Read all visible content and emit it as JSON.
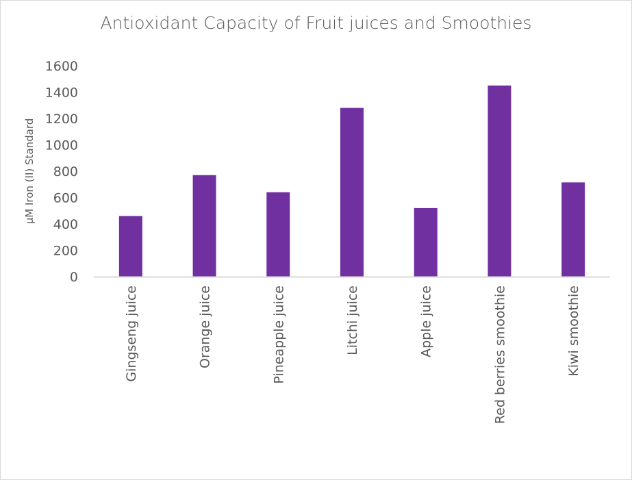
{
  "chart_data": {
    "type": "bar",
    "title": "Antioxidant Capacity of Fruit juices and Smoothies",
    "xlabel": "",
    "ylabel": "µM Iron (II) Standard",
    "categories": [
      "Gingseng juice",
      "Orange juice",
      "Pineapple juice",
      "Litchi juice",
      "Apple juice",
      "Red berries smoothie",
      "Kiwi smoothie"
    ],
    "values": [
      460,
      770,
      640,
      1280,
      520,
      1450,
      715
    ],
    "ylim": [
      0,
      1600
    ],
    "yticks": [
      "0",
      "200",
      "400",
      "600",
      "800",
      "1000",
      "1200",
      "1400",
      "1600"
    ],
    "grid": false,
    "legend": "none",
    "bar_color": "#7030a0"
  }
}
